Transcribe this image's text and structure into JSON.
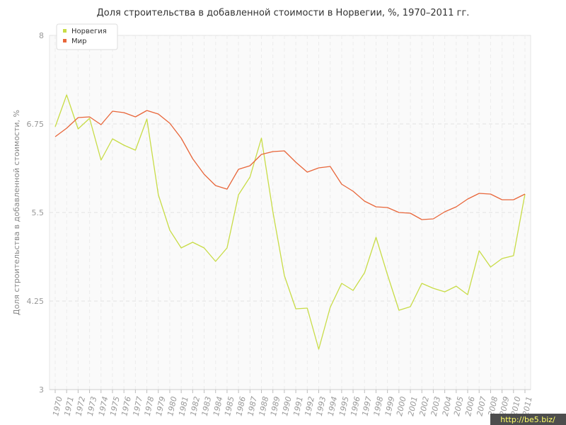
{
  "chart_data": {
    "type": "line",
    "title": "Доля строительства в добавленной стоимости в Норвегии, %, 1970–2011 гг.",
    "xlabel": "",
    "ylabel": "Доля строительства в добавленной стоимости, %",
    "ylim": [
      3,
      8
    ],
    "yticks": [
      "3",
      "4.25",
      "5.5",
      "6.75",
      "8"
    ],
    "grid": true,
    "legend": "top-left",
    "x": [
      "1970",
      "1971",
      "1972",
      "1973",
      "1974",
      "1975",
      "1976",
      "1977",
      "1978",
      "1979",
      "1980",
      "1981",
      "1982",
      "1983",
      "1984",
      "1985",
      "1986",
      "1987",
      "1988",
      "1989",
      "1990",
      "1991",
      "1992",
      "1993",
      "1994",
      "1995",
      "1996",
      "1997",
      "1998",
      "1999",
      "2000",
      "2001",
      "2002",
      "2003",
      "2004",
      "2005",
      "2006",
      "2007",
      "2008",
      "2009",
      "2010",
      "2011"
    ],
    "series": [
      {
        "name": "Норвегия",
        "color": "#c8dc46",
        "values": [
          6.71,
          7.16,
          6.68,
          6.83,
          6.24,
          6.54,
          6.45,
          6.38,
          6.82,
          5.75,
          5.25,
          5.0,
          5.08,
          5.0,
          4.81,
          5.0,
          5.75,
          6.0,
          6.55,
          5.51,
          4.61,
          4.14,
          4.15,
          3.57,
          4.16,
          4.5,
          4.4,
          4.65,
          5.15,
          4.62,
          4.12,
          4.17,
          4.5,
          4.43,
          4.38,
          4.46,
          4.34,
          4.96,
          4.73,
          4.85,
          4.89,
          5.76
        ]
      },
      {
        "name": "Мир",
        "color": "#e8663a",
        "values": [
          6.57,
          6.69,
          6.84,
          6.85,
          6.74,
          6.93,
          6.91,
          6.85,
          6.94,
          6.89,
          6.76,
          6.55,
          6.26,
          6.04,
          5.88,
          5.83,
          6.11,
          6.16,
          6.32,
          6.36,
          6.37,
          6.21,
          6.07,
          6.13,
          6.15,
          5.9,
          5.8,
          5.66,
          5.58,
          5.57,
          5.5,
          5.49,
          5.4,
          5.41,
          5.51,
          5.58,
          5.69,
          5.77,
          5.76,
          5.68,
          5.68,
          5.76
        ]
      }
    ]
  },
  "watermark": "http://be5.biz/"
}
